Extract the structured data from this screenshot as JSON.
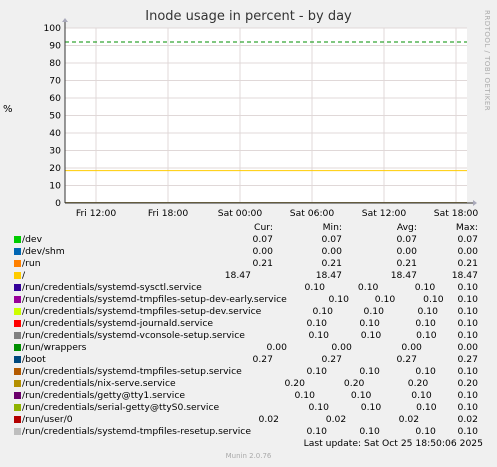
{
  "page": {
    "title": "Inode usage in percent - by day",
    "ylabel": "%",
    "watermark": "RRDTOOL / TOBI OETIKER",
    "last_update": "Last update: Sat Oct 25 18:50:06 2025",
    "footer": "Munin 2.0.76"
  },
  "legend_header": {
    "cur": "Cur:",
    "min": "Min:",
    "avg": "Avg:",
    "max": "Max:"
  },
  "colors": {
    "background": "#f0f0f0",
    "plot": "#ffffff",
    "grid": "#e0d8d8"
  },
  "chart_data": {
    "type": "line",
    "title": "Inode usage in percent - by day",
    "ylabel": "%",
    "ylim": [
      0,
      100
    ],
    "yticks": [
      0,
      10,
      20,
      30,
      40,
      50,
      60,
      70,
      80,
      90,
      100
    ],
    "xticks": [
      "Fri 12:00",
      "Fri 18:00",
      "Sat 00:00",
      "Sat 06:00",
      "Sat 12:00",
      "Sat 18:00"
    ],
    "warning_level": 92,
    "series": [
      {
        "name": "/dev",
        "color": "#00cc00",
        "cur": "0.07",
        "min": "0.07",
        "avg": "0.07",
        "max": "0.07"
      },
      {
        "name": "/dev/shm",
        "color": "#0066b3",
        "cur": "0.00",
        "min": "0.00",
        "avg": "0.00",
        "max": "0.00"
      },
      {
        "name": "/run",
        "color": "#ff8000",
        "cur": "0.21",
        "min": "0.21",
        "avg": "0.21",
        "max": "0.21"
      },
      {
        "name": "/",
        "color": "#ffcc00",
        "cur": "18.47",
        "min": "18.47",
        "avg": "18.47",
        "max": "18.47"
      },
      {
        "name": "/run/credentials/systemd-sysctl.service",
        "color": "#330099",
        "cur": "0.10",
        "min": "0.10",
        "avg": "0.10",
        "max": "0.10"
      },
      {
        "name": "/run/credentials/systemd-tmpfiles-setup-dev-early.service",
        "color": "#990099",
        "cur": "0.10",
        "min": "0.10",
        "avg": "0.10",
        "max": "0.10"
      },
      {
        "name": "/run/credentials/systemd-tmpfiles-setup-dev.service",
        "color": "#ccff00",
        "cur": "0.10",
        "min": "0.10",
        "avg": "0.10",
        "max": "0.10"
      },
      {
        "name": "/run/credentials/systemd-journald.service",
        "color": "#ff0000",
        "cur": "0.10",
        "min": "0.10",
        "avg": "0.10",
        "max": "0.10"
      },
      {
        "name": "/run/credentials/systemd-vconsole-setup.service",
        "color": "#808080",
        "cur": "0.10",
        "min": "0.10",
        "avg": "0.10",
        "max": "0.10"
      },
      {
        "name": "/run/wrappers",
        "color": "#008f00",
        "cur": "0.00",
        "min": "0.00",
        "avg": "0.00",
        "max": "0.00"
      },
      {
        "name": "/boot",
        "color": "#00487d",
        "cur": "0.27",
        "min": "0.27",
        "avg": "0.27",
        "max": "0.27"
      },
      {
        "name": "/run/credentials/systemd-tmpfiles-setup.service",
        "color": "#b35a00",
        "cur": "0.10",
        "min": "0.10",
        "avg": "0.10",
        "max": "0.10"
      },
      {
        "name": "/run/credentials/nix-serve.service",
        "color": "#b38f00",
        "cur": "0.20",
        "min": "0.20",
        "avg": "0.20",
        "max": "0.20"
      },
      {
        "name": "/run/credentials/getty@tty1.service",
        "color": "#6b006b",
        "cur": "0.10",
        "min": "0.10",
        "avg": "0.10",
        "max": "0.10"
      },
      {
        "name": "/run/credentials/serial-getty@ttyS0.service",
        "color": "#8fb300",
        "cur": "0.10",
        "min": "0.10",
        "avg": "0.10",
        "max": "0.10"
      },
      {
        "name": "/run/user/0",
        "color": "#b30000",
        "cur": "0.02",
        "min": "0.02",
        "avg": "0.02",
        "max": "0.02"
      },
      {
        "name": "/run/credentials/systemd-tmpfiles-resetup.service",
        "color": "#bebebe",
        "cur": "0.10",
        "min": "0.10",
        "avg": "0.10",
        "max": "0.10"
      }
    ]
  }
}
